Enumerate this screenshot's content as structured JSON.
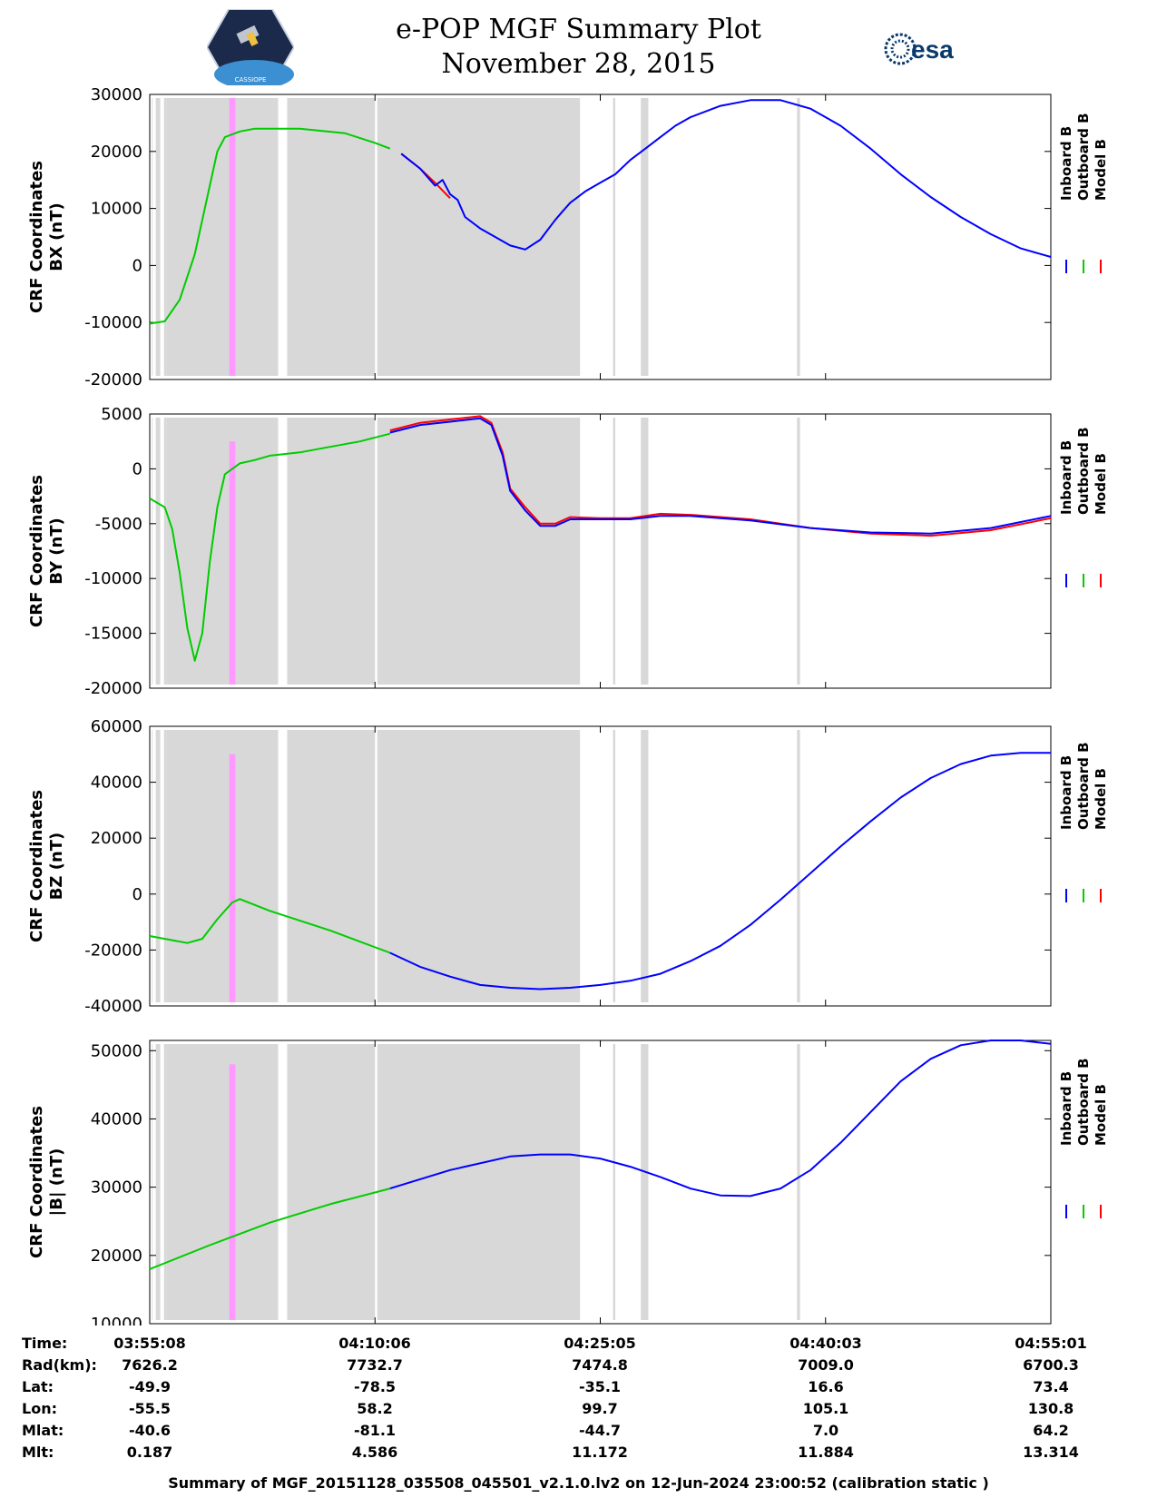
{
  "header": {
    "title_line1": "e-POP MGF Summary Plot",
    "title_line2": "November 28, 2015",
    "mission_logo": "CASSIOPE satellite patch",
    "mission_logo_text": "CASSIOPE",
    "agency_logo_text": "esa"
  },
  "colors": {
    "inboard": "#0000ff",
    "outboard": "#00cc00",
    "model": "#ff0000",
    "gap_shade": "#d8d8d8",
    "marker": "#ff99ff"
  },
  "chart_data": [
    {
      "type": "line",
      "ylabel_line1": "CRF Coordinates",
      "ylabel_line2": "BX (nT)",
      "ylim": [
        -20000,
        30000
      ],
      "yticks": [
        30000,
        20000,
        10000,
        0,
        -10000,
        -20000
      ],
      "ytick_labels": [
        "30000",
        "20000",
        "10000",
        "0",
        "-10000",
        "-20000"
      ],
      "legend": [
        "Inboard B",
        "Outboard B",
        "Model B"
      ],
      "series": [
        {
          "name": "Outboard B",
          "color": "outboard",
          "x": [
            0,
            2,
            4,
            6,
            8,
            9,
            10,
            12,
            14,
            20,
            26,
            30,
            32
          ],
          "values": [
            -10200,
            -9800,
            -6000,
            2000,
            14000,
            20000,
            22500,
            23500,
            24000,
            24000,
            23200,
            21500,
            20500
          ]
        },
        {
          "name": "Model B",
          "color": "model",
          "x": [
            33.5,
            36,
            38,
            40
          ],
          "values": [
            19600,
            17000,
            14500,
            11800
          ]
        },
        {
          "name": "Inboard B",
          "color": "inboard",
          "x": [
            33.5,
            36,
            38,
            39,
            40,
            41,
            42,
            44,
            46,
            48,
            50,
            52,
            54,
            55,
            56,
            58,
            60,
            62,
            64,
            66,
            68,
            70,
            72,
            76,
            80,
            84,
            88,
            92,
            96,
            100,
            104,
            108,
            112,
            116,
            120
          ],
          "values": [
            19600,
            17000,
            14000,
            15000,
            12500,
            11500,
            8500,
            6500,
            5000,
            3500,
            2800,
            4500,
            8000,
            9500,
            11000,
            13000,
            14500,
            16000,
            18500,
            20500,
            22500,
            24500,
            26000,
            28000,
            29000,
            29000,
            27500,
            24500,
            20500,
            16000,
            12000,
            8500,
            5500,
            3000,
            1500
          ]
        }
      ]
    },
    {
      "type": "line",
      "ylabel_line1": "CRF Coordinates",
      "ylabel_line2": "BY (nT)",
      "ylim": [
        -20000,
        5000
      ],
      "yticks": [
        5000,
        0,
        -5000,
        -10000,
        -15000,
        -20000
      ],
      "ytick_labels": [
        "5000",
        "0",
        "-5000",
        "-10000",
        "-15000",
        "-20000"
      ],
      "legend": [
        "Inboard B",
        "Outboard B",
        "Model B"
      ],
      "series": [
        {
          "name": "Outboard B",
          "color": "outboard",
          "x": [
            0,
            2,
            3,
            4,
            5,
            6,
            7,
            8,
            9,
            10,
            12,
            14,
            16,
            20,
            24,
            28,
            32
          ],
          "values": [
            -2700,
            -3500,
            -5500,
            -9500,
            -14500,
            -17500,
            -15000,
            -8500,
            -3500,
            -500,
            500,
            800,
            1200,
            1500,
            2000,
            2500,
            3200
          ]
        },
        {
          "name": "Model B",
          "color": "model",
          "x": [
            32,
            36,
            40,
            44,
            45.5,
            47,
            48,
            50,
            52,
            54,
            56,
            60,
            64,
            68,
            72,
            80,
            88,
            96,
            104,
            112,
            120
          ],
          "values": [
            3500,
            4200,
            4500,
            4800,
            4200,
            1500,
            -1800,
            -3500,
            -5000,
            -5000,
            -4400,
            -4500,
            -4500,
            -4100,
            -4200,
            -4600,
            -5400,
            -5900,
            -6100,
            -5600,
            -4500
          ]
        },
        {
          "name": "Inboard B",
          "color": "inboard",
          "x": [
            32,
            36,
            40,
            44,
            45.5,
            47,
            48,
            50,
            52,
            54,
            56,
            60,
            64,
            68,
            72,
            80,
            88,
            96,
            104,
            112,
            120
          ],
          "values": [
            3300,
            4000,
            4300,
            4600,
            4000,
            1200,
            -2000,
            -3800,
            -5200,
            -5200,
            -4600,
            -4600,
            -4600,
            -4300,
            -4300,
            -4700,
            -5400,
            -5800,
            -5900,
            -5400,
            -4300
          ]
        }
      ]
    },
    {
      "type": "line",
      "ylabel_line1": "CRF Coordinates",
      "ylabel_line2": "BZ (nT)",
      "ylim": [
        -40000,
        60000
      ],
      "yticks": [
        60000,
        40000,
        20000,
        0,
        -20000,
        -40000
      ],
      "ytick_labels": [
        "60000",
        "40000",
        "20000",
        "0",
        "-20000",
        "-40000"
      ],
      "legend": [
        "Inboard B",
        "Outboard B",
        "Model B"
      ],
      "series": [
        {
          "name": "Outboard B",
          "color": "outboard",
          "x": [
            0,
            3,
            5,
            7,
            9,
            11,
            12,
            16,
            20,
            24,
            28,
            32
          ],
          "values": [
            -15000,
            -16500,
            -17500,
            -16000,
            -9000,
            -3000,
            -1800,
            -6000,
            -9500,
            -13000,
            -17000,
            -21000
          ]
        },
        {
          "name": "Inboard B",
          "color": "inboard",
          "x": [
            32,
            36,
            40,
            44,
            48,
            52,
            56,
            60,
            64,
            68,
            72,
            76,
            80,
            84,
            88,
            92,
            96,
            100,
            104,
            108,
            112,
            116,
            120
          ],
          "values": [
            -21000,
            -26000,
            -29500,
            -32500,
            -33500,
            -34000,
            -33500,
            -32500,
            -31000,
            -28500,
            -24000,
            -18500,
            -11000,
            -2000,
            7500,
            17000,
            26000,
            34500,
            41500,
            46500,
            49500,
            50500,
            50500
          ]
        }
      ]
    },
    {
      "type": "line",
      "ylabel_line1": "CRF Coordinates",
      "ylabel_line2": "|B| (nT)",
      "ylim": [
        10000,
        51500
      ],
      "yticks": [
        50000,
        40000,
        30000,
        20000,
        10000
      ],
      "ytick_labels": [
        "50000",
        "40000",
        "30000",
        "20000",
        "10000"
      ],
      "legend": [
        "Inboard B",
        "Outboard B",
        "Model B"
      ],
      "series": [
        {
          "name": "Outboard B",
          "color": "outboard",
          "x": [
            0,
            8,
            16,
            24,
            32
          ],
          "values": [
            18000,
            21500,
            24800,
            27500,
            29800
          ]
        },
        {
          "name": "Inboard B",
          "color": "inboard",
          "x": [
            32,
            40,
            48,
            52,
            56,
            60,
            64,
            68,
            72,
            76,
            80,
            84,
            88,
            92,
            96,
            100,
            104,
            108,
            112,
            116,
            120
          ],
          "values": [
            29800,
            32500,
            34500,
            34800,
            34800,
            34200,
            33000,
            31500,
            29800,
            28800,
            28700,
            29800,
            32500,
            36500,
            41000,
            45500,
            48800,
            50800,
            51500,
            51500,
            51000
          ]
        }
      ]
    }
  ],
  "footer": {
    "rows": [
      {
        "label": "Time:",
        "values": [
          "03:55:08",
          "04:10:06",
          "04:25:05",
          "04:40:03",
          "04:55:01"
        ]
      },
      {
        "label": "Rad(km):",
        "values": [
          "7626.2",
          "7732.7",
          "7474.8",
          "7009.0",
          "6700.3"
        ]
      },
      {
        "label": "Lat:",
        "values": [
          "-49.9",
          "-78.5",
          "-35.1",
          "16.6",
          "73.4"
        ]
      },
      {
        "label": "Lon:",
        "values": [
          "-55.5",
          "58.2",
          "99.7",
          "105.1",
          "130.8"
        ]
      },
      {
        "label": "Mlat:",
        "values": [
          "-40.6",
          "-81.1",
          "-44.7",
          "7.0",
          "64.2"
        ]
      },
      {
        "label": "Mlt:",
        "values": [
          "0.187",
          "4.586",
          "11.172",
          "11.884",
          "13.314"
        ]
      }
    ],
    "caption": "Summary of MGF_20151128_035508_045501_v2.1.0.lv2 on 12-Jun-2024 23:00:52 (calibration static )"
  }
}
